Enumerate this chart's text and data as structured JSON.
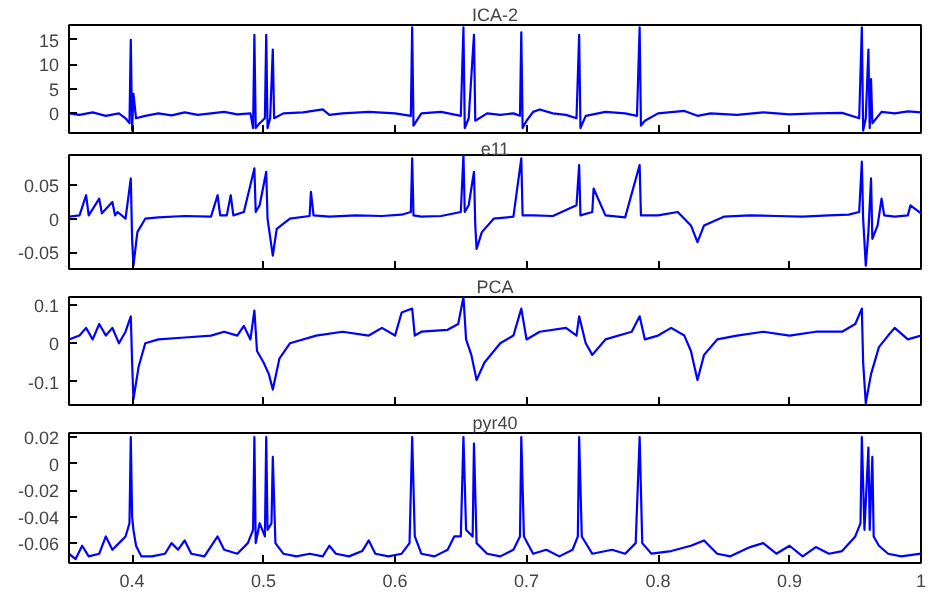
{
  "chart_data": [
    {
      "type": "line",
      "title": "ICA-2",
      "color": "#0000ff",
      "xlim": [
        0.352,
        1.0
      ],
      "xticks": [
        0.4,
        0.5,
        0.6,
        0.7,
        0.8,
        0.9,
        1
      ],
      "ylim": [
        -4,
        18
      ],
      "yticks": [
        0,
        5,
        10,
        15
      ],
      "tick_labels": "y",
      "x": [
        0.352,
        0.36,
        0.37,
        0.38,
        0.39,
        0.395,
        0.398,
        0.399,
        0.4,
        0.401,
        0.403,
        0.41,
        0.42,
        0.43,
        0.44,
        0.45,
        0.46,
        0.47,
        0.48,
        0.49,
        0.492,
        0.493,
        0.494,
        0.497,
        0.501,
        0.502,
        0.503,
        0.505,
        0.507,
        0.508,
        0.515,
        0.53,
        0.545,
        0.55,
        0.56,
        0.58,
        0.6,
        0.612,
        0.613,
        0.614,
        0.62,
        0.635,
        0.65,
        0.652,
        0.653,
        0.656,
        0.66,
        0.661,
        0.67,
        0.68,
        0.69,
        0.695,
        0.696,
        0.697,
        0.7,
        0.705,
        0.71,
        0.72,
        0.73,
        0.738,
        0.74,
        0.741,
        0.745,
        0.76,
        0.775,
        0.784,
        0.786,
        0.787,
        0.79,
        0.8,
        0.82,
        0.83,
        0.84,
        0.86,
        0.88,
        0.9,
        0.92,
        0.94,
        0.953,
        0.955,
        0.956,
        0.958,
        0.96,
        0.961,
        0.962,
        0.963,
        0.97,
        0.98,
        0.99,
        1.0
      ],
      "values": [
        0,
        -0.3,
        0.2,
        -0.5,
        0,
        -1,
        -2,
        15,
        -3.5,
        4,
        -1,
        -0.5,
        0,
        -0.4,
        0.2,
        -0.3,
        0,
        0.3,
        -0.2,
        0,
        -3,
        16,
        -3,
        -2,
        -1,
        16,
        -3,
        -1,
        13,
        -1,
        0,
        0.2,
        0.8,
        -0.3,
        0,
        0.3,
        0,
        -0.5,
        17.5,
        -2.5,
        0,
        0.3,
        -0.5,
        17.5,
        -3,
        -1,
        16,
        -1.5,
        0,
        -0.3,
        0,
        -0.5,
        16.5,
        -3,
        -1.5,
        0.3,
        0.8,
        0,
        -0.3,
        -1,
        16,
        -3,
        -0.5,
        0.3,
        0,
        -0.5,
        17.5,
        -2.5,
        -1.5,
        0,
        0.5,
        -0.5,
        0,
        -0.3,
        0.2,
        -0.2,
        0,
        0.1,
        -1,
        17.5,
        -3.5,
        -1,
        13,
        -3,
        7,
        -2,
        0.3,
        0,
        0.4,
        0.2
      ]
    },
    {
      "type": "line",
      "title": "e11",
      "color": "#0000ff",
      "xlim": [
        0.352,
        1.0
      ],
      "xticks": [
        0.4,
        0.5,
        0.6,
        0.7,
        0.8,
        0.9,
        1
      ],
      "ylim": [
        -0.075,
        0.095
      ],
      "yticks": [
        -0.05,
        0,
        0.05
      ],
      "tick_labels": "y",
      "x": [
        0.352,
        0.36,
        0.365,
        0.367,
        0.375,
        0.377,
        0.385,
        0.387,
        0.389,
        0.395,
        0.399,
        0.4,
        0.401,
        0.404,
        0.41,
        0.42,
        0.44,
        0.46,
        0.465,
        0.467,
        0.472,
        0.475,
        0.477,
        0.485,
        0.493,
        0.494,
        0.497,
        0.502,
        0.503,
        0.507,
        0.51,
        0.52,
        0.535,
        0.536,
        0.538,
        0.55,
        0.57,
        0.59,
        0.605,
        0.612,
        0.613,
        0.614,
        0.62,
        0.635,
        0.65,
        0.652,
        0.653,
        0.656,
        0.66,
        0.661,
        0.662,
        0.666,
        0.675,
        0.69,
        0.696,
        0.697,
        0.705,
        0.72,
        0.738,
        0.74,
        0.741,
        0.75,
        0.751,
        0.76,
        0.775,
        0.786,
        0.787,
        0.8,
        0.815,
        0.825,
        0.83,
        0.835,
        0.85,
        0.87,
        0.89,
        0.91,
        0.93,
        0.945,
        0.953,
        0.955,
        0.956,
        0.958,
        0.96,
        0.962,
        0.963,
        0.967,
        0.97,
        0.972,
        0.98,
        0.99,
        0.992,
        1.0
      ],
      "values": [
        0.003,
        0.005,
        0.035,
        0.005,
        0.03,
        0.008,
        0.025,
        0.005,
        0.01,
        0,
        0.06,
        -0.03,
        -0.07,
        -0.02,
        0,
        0.002,
        0.004,
        0.003,
        0.035,
        0.005,
        0.005,
        0.035,
        0.005,
        0.01,
        0.075,
        0.01,
        0.02,
        0.07,
        0,
        -0.055,
        -0.015,
        0,
        0.004,
        0.04,
        0.005,
        0.003,
        0.005,
        0.004,
        0.006,
        0.01,
        0.09,
        0.005,
        0.003,
        0.004,
        0.01,
        0.095,
        0.01,
        0.02,
        0.07,
        -0.01,
        -0.045,
        -0.02,
        0,
        0.003,
        0.09,
        0.005,
        0.005,
        0.004,
        0.02,
        0.08,
        0.005,
        0.01,
        0.045,
        0.005,
        0.002,
        0.08,
        0.005,
        0.005,
        0.01,
        -0.01,
        -0.035,
        -0.01,
        0.003,
        0.005,
        0.004,
        0.003,
        0.005,
        0.006,
        0.01,
        0.085,
        0,
        -0.07,
        -0.02,
        0.06,
        -0.03,
        -0.01,
        0.03,
        0.005,
        0.003,
        0.005,
        0.02,
        0.008
      ]
    },
    {
      "type": "line",
      "title": "PCA",
      "color": "#0000ff",
      "xlim": [
        0.352,
        1.0
      ],
      "xticks": [
        0.4,
        0.5,
        0.6,
        0.7,
        0.8,
        0.9,
        1
      ],
      "ylim": [
        -0.16,
        0.12
      ],
      "yticks": [
        -0.1,
        0,
        0.1
      ],
      "tick_labels": "y",
      "x": [
        0.352,
        0.36,
        0.365,
        0.37,
        0.375,
        0.38,
        0.385,
        0.39,
        0.395,
        0.399,
        0.4,
        0.401,
        0.405,
        0.41,
        0.42,
        0.44,
        0.46,
        0.47,
        0.48,
        0.485,
        0.49,
        0.493,
        0.495,
        0.5,
        0.504,
        0.507,
        0.512,
        0.52,
        0.54,
        0.56,
        0.58,
        0.59,
        0.6,
        0.605,
        0.613,
        0.615,
        0.62,
        0.64,
        0.648,
        0.652,
        0.654,
        0.658,
        0.662,
        0.668,
        0.68,
        0.69,
        0.696,
        0.7,
        0.71,
        0.73,
        0.738,
        0.74,
        0.745,
        0.75,
        0.76,
        0.78,
        0.786,
        0.79,
        0.8,
        0.81,
        0.82,
        0.825,
        0.83,
        0.835,
        0.845,
        0.86,
        0.88,
        0.9,
        0.92,
        0.94,
        0.95,
        0.955,
        0.956,
        0.958,
        0.962,
        0.968,
        0.975,
        0.98,
        0.99,
        1.0
      ],
      "values": [
        0.01,
        0.02,
        0.04,
        0.01,
        0.05,
        0.02,
        0.04,
        0,
        0.03,
        0.07,
        -0.05,
        -0.145,
        -0.06,
        0,
        0.01,
        0.015,
        0.02,
        0.03,
        0.02,
        0.045,
        0.01,
        0.085,
        -0.02,
        -0.05,
        -0.08,
        -0.12,
        -0.04,
        0,
        0.02,
        0.03,
        0.02,
        0.04,
        0.02,
        0.08,
        0.09,
        0.02,
        0.03,
        0.035,
        0.05,
        0.12,
        0.01,
        -0.03,
        -0.095,
        -0.05,
        0,
        0.02,
        0.09,
        0.01,
        0.03,
        0.04,
        0.02,
        0.07,
        0,
        -0.03,
        0.01,
        0.03,
        0.07,
        0.01,
        0.02,
        0.04,
        0.02,
        -0.02,
        -0.095,
        -0.03,
        0.01,
        0.02,
        0.03,
        0.02,
        0.03,
        0.03,
        0.05,
        0.09,
        -0.05,
        -0.155,
        -0.08,
        -0.01,
        0.02,
        0.04,
        0.01,
        0.02
      ]
    },
    {
      "type": "line",
      "title": "pyr40",
      "color": "#0000ff",
      "xlim": [
        0.352,
        1.0
      ],
      "xticks": [
        0.4,
        0.5,
        0.6,
        0.7,
        0.8,
        0.9,
        1
      ],
      "ylim": [
        -0.075,
        0.023
      ],
      "yticks": [
        -0.06,
        -0.04,
        -0.02,
        0,
        0.02
      ],
      "x": [
        0.352,
        0.357,
        0.362,
        0.367,
        0.375,
        0.38,
        0.385,
        0.39,
        0.395,
        0.398,
        0.399,
        0.4,
        0.401,
        0.403,
        0.407,
        0.415,
        0.425,
        0.43,
        0.435,
        0.44,
        0.445,
        0.455,
        0.465,
        0.47,
        0.48,
        0.488,
        0.492,
        0.493,
        0.494,
        0.497,
        0.501,
        0.502,
        0.503,
        0.506,
        0.507,
        0.509,
        0.515,
        0.525,
        0.535,
        0.545,
        0.55,
        0.555,
        0.565,
        0.575,
        0.58,
        0.585,
        0.595,
        0.605,
        0.611,
        0.613,
        0.615,
        0.62,
        0.63,
        0.64,
        0.645,
        0.65,
        0.652,
        0.654,
        0.659,
        0.66,
        0.662,
        0.67,
        0.68,
        0.69,
        0.695,
        0.696,
        0.698,
        0.705,
        0.715,
        0.725,
        0.735,
        0.739,
        0.74,
        0.742,
        0.75,
        0.765,
        0.775,
        0.783,
        0.786,
        0.788,
        0.795,
        0.81,
        0.825,
        0.835,
        0.845,
        0.855,
        0.87,
        0.88,
        0.89,
        0.9,
        0.91,
        0.92,
        0.93,
        0.94,
        0.95,
        0.954,
        0.955,
        0.957,
        0.96,
        0.961,
        0.963,
        0.964,
        0.968,
        0.975,
        0.985,
        1.0
      ],
      "values": [
        -0.068,
        -0.072,
        -0.062,
        -0.07,
        -0.068,
        -0.055,
        -0.065,
        -0.06,
        -0.055,
        -0.045,
        0.02,
        -0.04,
        -0.05,
        -0.062,
        -0.07,
        -0.07,
        -0.068,
        -0.06,
        -0.065,
        -0.058,
        -0.068,
        -0.07,
        -0.055,
        -0.065,
        -0.068,
        -0.06,
        -0.05,
        0.02,
        -0.06,
        -0.045,
        -0.055,
        0.02,
        -0.05,
        -0.045,
        0.005,
        -0.06,
        -0.068,
        -0.07,
        -0.068,
        -0.07,
        -0.062,
        -0.068,
        -0.07,
        -0.066,
        -0.058,
        -0.068,
        -0.07,
        -0.068,
        -0.06,
        0.02,
        -0.055,
        -0.068,
        -0.07,
        -0.065,
        -0.055,
        -0.055,
        0.02,
        -0.05,
        -0.055,
        0.015,
        -0.06,
        -0.068,
        -0.07,
        -0.065,
        -0.055,
        0.02,
        -0.055,
        -0.068,
        -0.065,
        -0.07,
        -0.065,
        -0.055,
        0.02,
        -0.055,
        -0.068,
        -0.065,
        -0.068,
        -0.06,
        0.02,
        -0.06,
        -0.068,
        -0.066,
        -0.062,
        -0.058,
        -0.068,
        -0.07,
        -0.063,
        -0.06,
        -0.068,
        -0.062,
        -0.07,
        -0.063,
        -0.068,
        -0.066,
        -0.055,
        -0.045,
        0.02,
        -0.05,
        0.012,
        -0.05,
        0.005,
        -0.055,
        -0.062,
        -0.068,
        -0.07,
        -0.068
      ]
    }
  ]
}
